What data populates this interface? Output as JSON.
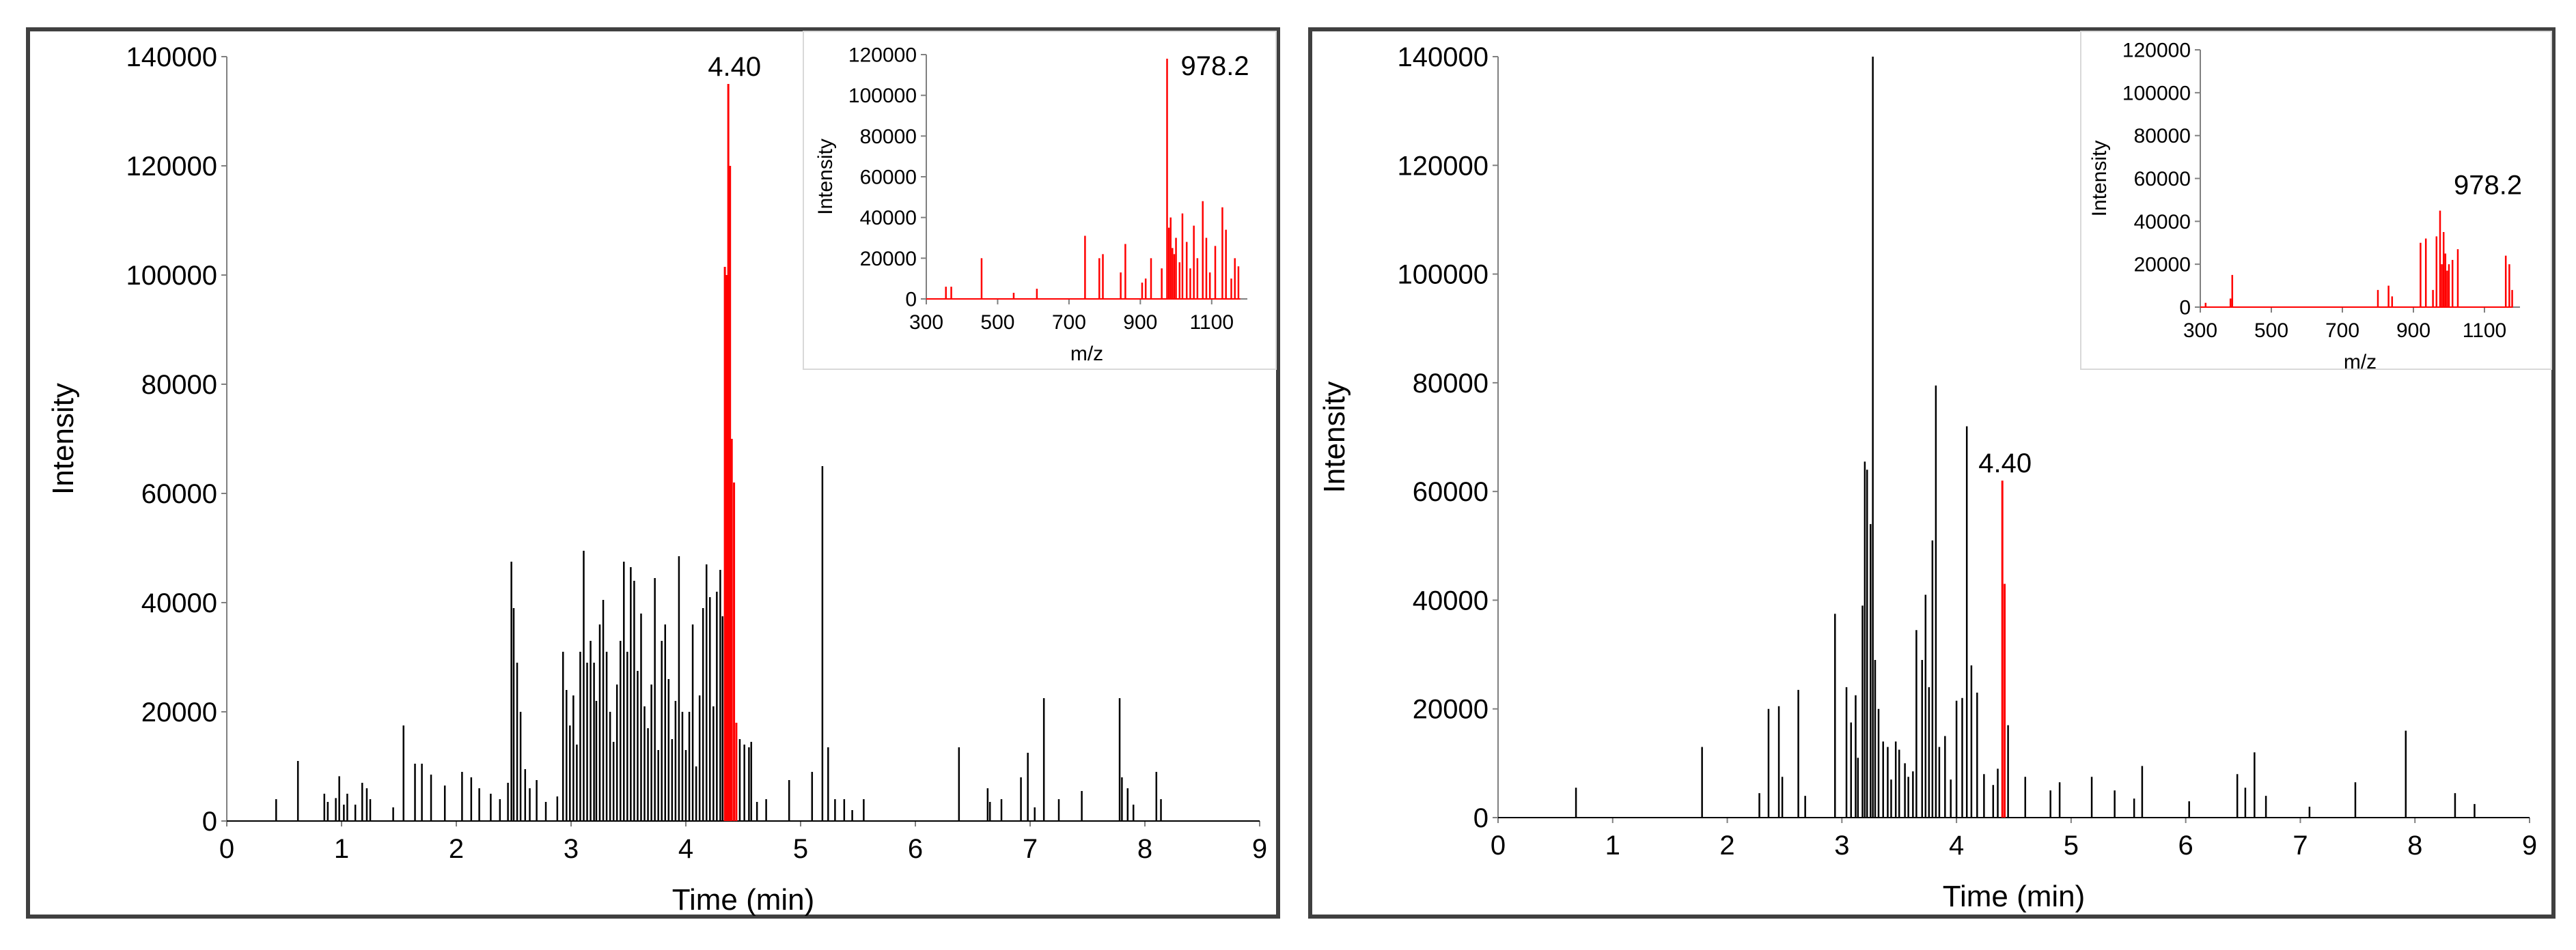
{
  "chart_data": [
    {
      "type": "chromatogram",
      "xlabel": "Time (min)",
      "ylabel": "Intensity",
      "xlim": [
        0,
        9
      ],
      "ylim": [
        0,
        140000
      ],
      "xticks": [
        "0",
        "1",
        "2",
        "3",
        "4",
        "5",
        "6",
        "7",
        "8",
        "9"
      ],
      "yticks": [
        "0",
        "20000",
        "40000",
        "60000",
        "80000",
        "100000",
        "120000",
        "140000"
      ],
      "peak_label": "4.40",
      "peak_color": "#ff0000",
      "trace_color": "#000000",
      "highlight_range": [
        4.34,
        4.45
      ],
      "peaks": [
        [
          0.43,
          4000
        ],
        [
          0.62,
          11000
        ],
        [
          0.85,
          5000
        ],
        [
          0.88,
          3500
        ],
        [
          0.95,
          4200
        ],
        [
          0.98,
          8200
        ],
        [
          1.02,
          3000
        ],
        [
          1.05,
          5000
        ],
        [
          1.12,
          3000
        ],
        [
          1.18,
          7000
        ],
        [
          1.22,
          6000
        ],
        [
          1.25,
          4000
        ],
        [
          1.45,
          2500
        ],
        [
          1.54,
          17500
        ],
        [
          1.64,
          10500
        ],
        [
          1.7,
          10500
        ],
        [
          1.78,
          8500
        ],
        [
          1.9,
          6500
        ],
        [
          2.05,
          9000
        ],
        [
          2.13,
          8000
        ],
        [
          2.2,
          6000
        ],
        [
          2.3,
          5000
        ],
        [
          2.38,
          4000
        ],
        [
          2.45,
          7000
        ],
        [
          2.48,
          47500
        ],
        [
          2.5,
          39000
        ],
        [
          2.53,
          29000
        ],
        [
          2.56,
          20000
        ],
        [
          2.6,
          9500
        ],
        [
          2.64,
          6000
        ],
        [
          2.7,
          7500
        ],
        [
          2.78,
          3500
        ],
        [
          2.88,
          4500
        ],
        [
          2.93,
          31000
        ],
        [
          2.96,
          24000
        ],
        [
          2.99,
          17500
        ],
        [
          3.02,
          23000
        ],
        [
          3.05,
          14000
        ],
        [
          3.08,
          31000
        ],
        [
          3.11,
          49500
        ],
        [
          3.14,
          29000
        ],
        [
          3.17,
          33000
        ],
        [
          3.2,
          29000
        ],
        [
          3.22,
          22000
        ],
        [
          3.25,
          36000
        ],
        [
          3.28,
          40500
        ],
        [
          3.31,
          31000
        ],
        [
          3.34,
          20000
        ],
        [
          3.37,
          14500
        ],
        [
          3.4,
          25000
        ],
        [
          3.43,
          33000
        ],
        [
          3.46,
          47500
        ],
        [
          3.49,
          31000
        ],
        [
          3.52,
          46500
        ],
        [
          3.55,
          44000
        ],
        [
          3.58,
          27500
        ],
        [
          3.61,
          38000
        ],
        [
          3.64,
          21000
        ],
        [
          3.67,
          17000
        ],
        [
          3.7,
          25000
        ],
        [
          3.73,
          44500
        ],
        [
          3.76,
          13000
        ],
        [
          3.79,
          33000
        ],
        [
          3.82,
          36000
        ],
        [
          3.85,
          26000
        ],
        [
          3.88,
          15000
        ],
        [
          3.91,
          22000
        ],
        [
          3.94,
          48500
        ],
        [
          3.97,
          20000
        ],
        [
          4.0,
          13000
        ],
        [
          4.03,
          20000
        ],
        [
          4.06,
          36000
        ],
        [
          4.09,
          10000
        ],
        [
          4.12,
          23000
        ],
        [
          4.15,
          39000
        ],
        [
          4.18,
          47000
        ],
        [
          4.21,
          41000
        ],
        [
          4.24,
          21000
        ],
        [
          4.27,
          42000
        ],
        [
          4.3,
          46000
        ],
        [
          4.32,
          37500
        ],
        [
          4.34,
          101500
        ],
        [
          4.355,
          100000
        ],
        [
          4.37,
          135000
        ],
        [
          4.385,
          120000
        ],
        [
          4.4,
          70000
        ],
        [
          4.42,
          62000
        ],
        [
          4.44,
          18000
        ],
        [
          4.47,
          15000
        ],
        [
          4.51,
          14000
        ],
        [
          4.55,
          13500
        ],
        [
          4.57,
          14500
        ],
        [
          4.62,
          3500
        ],
        [
          4.7,
          4000
        ],
        [
          4.9,
          7500
        ],
        [
          5.1,
          9000
        ],
        [
          5.19,
          65000
        ],
        [
          5.24,
          13500
        ],
        [
          5.3,
          4000
        ],
        [
          5.38,
          4000
        ],
        [
          5.45,
          2000
        ],
        [
          5.55,
          4000
        ],
        [
          6.38,
          13500
        ],
        [
          6.63,
          6000
        ],
        [
          6.65,
          3500
        ],
        [
          6.75,
          4000
        ],
        [
          6.92,
          8000
        ],
        [
          6.98,
          12500
        ],
        [
          7.04,
          2500
        ],
        [
          7.12,
          22500
        ],
        [
          7.25,
          4000
        ],
        [
          7.45,
          5500
        ],
        [
          7.78,
          22500
        ],
        [
          7.8,
          8000
        ],
        [
          7.85,
          6000
        ],
        [
          7.9,
          3000
        ],
        [
          8.1,
          9000
        ],
        [
          8.14,
          4000
        ]
      ],
      "inset": {
        "xlabel": "m/z",
        "ylabel": "Intensity",
        "xlim": [
          300,
          1200
        ],
        "ylim": [
          0,
          120000
        ],
        "xticks": [
          "300",
          "500",
          "700",
          "900",
          "1100"
        ],
        "yticks": [
          "0",
          "20000",
          "40000",
          "60000",
          "80000",
          "100000",
          "120000"
        ],
        "peak_label": "978.2",
        "peaks": [
          [
            355,
            6000
          ],
          [
            370,
            6000
          ],
          [
            455,
            20000
          ],
          [
            545,
            3000
          ],
          [
            610,
            5000
          ],
          [
            745,
            31000
          ],
          [
            785,
            20000
          ],
          [
            795,
            22000
          ],
          [
            845,
            13000
          ],
          [
            858,
            27000
          ],
          [
            905,
            8000
          ],
          [
            915,
            10000
          ],
          [
            930,
            20000
          ],
          [
            960,
            15000
          ],
          [
            975,
            118000
          ],
          [
            980,
            35000
          ],
          [
            985,
            40000
          ],
          [
            990,
            25000
          ],
          [
            995,
            22000
          ],
          [
            1000,
            30000
          ],
          [
            1010,
            18000
          ],
          [
            1018,
            42000
          ],
          [
            1030,
            28000
          ],
          [
            1040,
            15000
          ],
          [
            1050,
            36000
          ],
          [
            1060,
            20000
          ],
          [
            1075,
            48000
          ],
          [
            1085,
            30000
          ],
          [
            1095,
            13000
          ],
          [
            1110,
            26000
          ],
          [
            1130,
            45000
          ],
          [
            1140,
            34000
          ],
          [
            1155,
            10000
          ],
          [
            1165,
            20000
          ],
          [
            1175,
            16000
          ]
        ]
      }
    },
    {
      "type": "chromatogram",
      "xlabel": "Time (min)",
      "ylabel": "Intensity",
      "xlim": [
        0,
        9
      ],
      "ylim": [
        0,
        140000
      ],
      "xticks": [
        "0",
        "1",
        "2",
        "3",
        "4",
        "5",
        "6",
        "7",
        "8",
        "9"
      ],
      "yticks": [
        "0",
        "20000",
        "40000",
        "60000",
        "80000",
        "100000",
        "120000",
        "140000"
      ],
      "peak_label": "4.40",
      "peak_color": "#ff0000",
      "trace_color": "#000000",
      "highlight_range": [
        4.38,
        4.44
      ],
      "peaks": [
        [
          0.68,
          5500
        ],
        [
          1.78,
          13000
        ],
        [
          2.28,
          4500
        ],
        [
          2.36,
          20000
        ],
        [
          2.45,
          20500
        ],
        [
          2.48,
          7500
        ],
        [
          2.62,
          23500
        ],
        [
          2.68,
          4000
        ],
        [
          2.94,
          37500
        ],
        [
          3.04,
          24000
        ],
        [
          3.08,
          17500
        ],
        [
          3.12,
          22500
        ],
        [
          3.14,
          11000
        ],
        [
          3.18,
          39000
        ],
        [
          3.2,
          65500
        ],
        [
          3.22,
          64000
        ],
        [
          3.25,
          54000
        ],
        [
          3.27,
          140000
        ],
        [
          3.29,
          29000
        ],
        [
          3.32,
          20000
        ],
        [
          3.36,
          14000
        ],
        [
          3.4,
          13000
        ],
        [
          3.43,
          7000
        ],
        [
          3.47,
          14000
        ],
        [
          3.5,
          12500
        ],
        [
          3.55,
          10000
        ],
        [
          3.58,
          7500
        ],
        [
          3.62,
          8500
        ],
        [
          3.65,
          34500
        ],
        [
          3.7,
          29000
        ],
        [
          3.73,
          41000
        ],
        [
          3.76,
          24000
        ],
        [
          3.79,
          51000
        ],
        [
          3.82,
          79500
        ],
        [
          3.85,
          13000
        ],
        [
          3.9,
          15000
        ],
        [
          3.95,
          7000
        ],
        [
          4.0,
          21500
        ],
        [
          4.05,
          22000
        ],
        [
          4.09,
          72000
        ],
        [
          4.13,
          28000
        ],
        [
          4.18,
          23000
        ],
        [
          4.24,
          8000
        ],
        [
          4.32,
          6000
        ],
        [
          4.36,
          9000
        ],
        [
          4.4,
          62000
        ],
        [
          4.42,
          43000
        ],
        [
          4.45,
          17000
        ],
        [
          4.6,
          7500
        ],
        [
          4.82,
          5000
        ],
        [
          4.9,
          6500
        ],
        [
          5.18,
          7500
        ],
        [
          5.38,
          5000
        ],
        [
          5.55,
          3500
        ],
        [
          5.62,
          9500
        ],
        [
          6.03,
          3000
        ],
        [
          6.45,
          8000
        ],
        [
          6.52,
          5500
        ],
        [
          6.6,
          12000
        ],
        [
          6.7,
          4000
        ],
        [
          7.08,
          2000
        ],
        [
          7.48,
          6500
        ],
        [
          7.92,
          16000
        ],
        [
          8.35,
          4500
        ],
        [
          8.52,
          2500
        ]
      ],
      "inset": {
        "xlabel": "m/z",
        "ylabel": "Intensity",
        "xlim": [
          300,
          1200
        ],
        "ylim": [
          0,
          120000
        ],
        "xticks": [
          "300",
          "500",
          "700",
          "900",
          "1100"
        ],
        "yticks": [
          "0",
          "20000",
          "40000",
          "60000",
          "80000",
          "100000",
          "120000"
        ],
        "peak_label": "978.2",
        "peaks": [
          [
            315,
            2000
          ],
          [
            385,
            4000
          ],
          [
            390,
            15000
          ],
          [
            800,
            8000
          ],
          [
            830,
            10000
          ],
          [
            840,
            5000
          ],
          [
            920,
            30000
          ],
          [
            935,
            32000
          ],
          [
            955,
            8000
          ],
          [
            965,
            33000
          ],
          [
            975,
            45000
          ],
          [
            980,
            20000
          ],
          [
            985,
            35000
          ],
          [
            990,
            25000
          ],
          [
            995,
            17000
          ],
          [
            1000,
            20000
          ],
          [
            1010,
            22000
          ],
          [
            1025,
            27000
          ],
          [
            1160,
            24000
          ],
          [
            1170,
            20000
          ],
          [
            1178,
            8000
          ]
        ]
      }
    }
  ]
}
